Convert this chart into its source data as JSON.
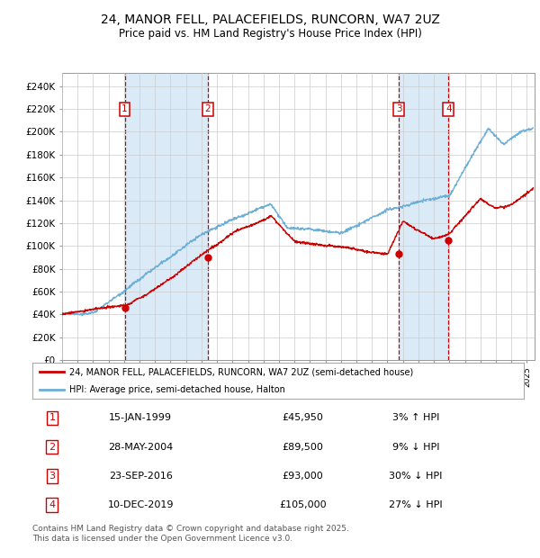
{
  "title": "24, MANOR FELL, PALACEFIELDS, RUNCORN, WA7 2UZ",
  "subtitle": "Price paid vs. HM Land Registry's House Price Index (HPI)",
  "ylabel_ticks": [
    "£0",
    "£20K",
    "£40K",
    "£60K",
    "£80K",
    "£100K",
    "£120K",
    "£140K",
    "£160K",
    "£180K",
    "£200K",
    "£220K",
    "£240K"
  ],
  "ytick_values": [
    0,
    20000,
    40000,
    60000,
    80000,
    100000,
    120000,
    140000,
    160000,
    180000,
    200000,
    220000,
    240000
  ],
  "ylim": [
    0,
    252000
  ],
  "xlim_start": 1995.0,
  "xlim_end": 2025.5,
  "sales": [
    {
      "date": 1999.04,
      "price": 45950,
      "label": "1"
    },
    {
      "date": 2004.41,
      "price": 89500,
      "label": "2"
    },
    {
      "date": 2016.73,
      "price": 93000,
      "label": "3"
    },
    {
      "date": 2019.94,
      "price": 105000,
      "label": "4"
    }
  ],
  "vline_color": "#cc0000",
  "vline_style": "--",
  "vband_color": "#daeaf6",
  "sale_marker_color": "#cc0000",
  "hpi_line_color": "#6baed6",
  "price_line_color": "#cc0000",
  "legend_items": [
    {
      "label": "24, MANOR FELL, PALACEFIELDS, RUNCORN, WA7 2UZ (semi-detached house)",
      "color": "#cc0000"
    },
    {
      "label": "HPI: Average price, semi-detached house, Halton",
      "color": "#6baed6"
    }
  ],
  "table_rows": [
    {
      "num": "1",
      "date": "15-JAN-1999",
      "price": "£45,950",
      "pct": "3% ↑ HPI"
    },
    {
      "num": "2",
      "date": "28-MAY-2004",
      "price": "£89,500",
      "pct": "9% ↓ HPI"
    },
    {
      "num": "3",
      "date": "23-SEP-2016",
      "price": "£93,000",
      "pct": "30% ↓ HPI"
    },
    {
      "num": "4",
      "date": "10-DEC-2019",
      "price": "£105,000",
      "pct": "27% ↓ HPI"
    }
  ],
  "footnote": "Contains HM Land Registry data © Crown copyright and database right 2025.\nThis data is licensed under the Open Government Licence v3.0.",
  "background_color": "#ffffff",
  "plot_bg_color": "#ffffff",
  "grid_color": "#cccccc"
}
